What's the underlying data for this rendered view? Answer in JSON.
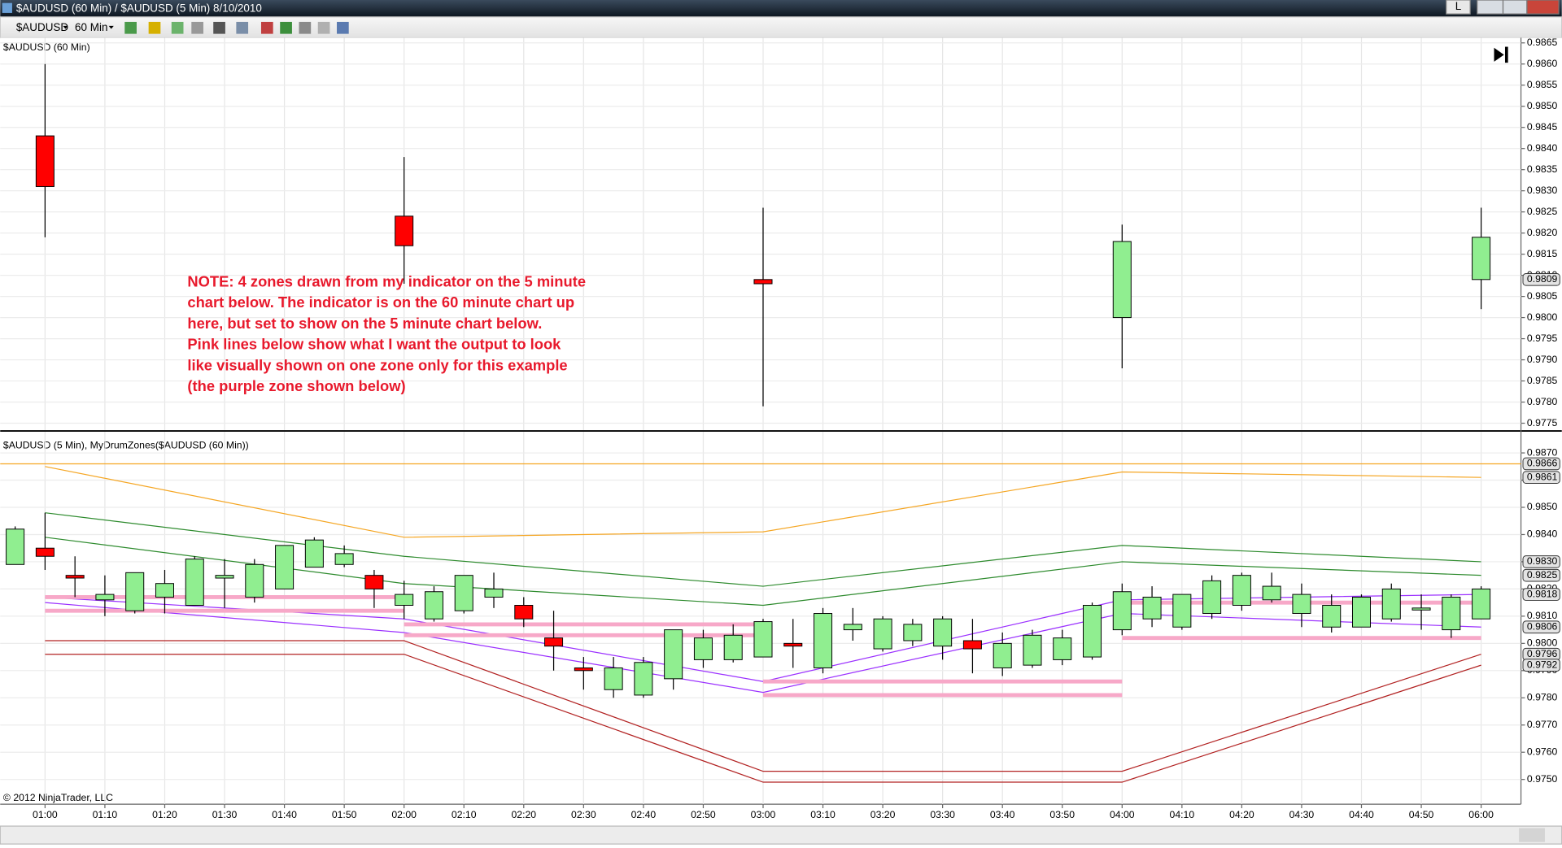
{
  "window": {
    "title": "$AUDUSD (60 Min) / $AUDUSD (5 Min)  8/10/2010",
    "link_button": "L",
    "toolbar": {
      "instrument": "$AUDUSD",
      "interval": "60 Min"
    },
    "copyright": "© 2012 NinjaTrader, LLC"
  },
  "chart_data": [
    {
      "type": "candlestick",
      "title": "$AUDUSD (60 Min)",
      "annotation": [
        "NOTE: 4 zones drawn from my indicator on the 5 minute",
        "chart below.  The indicator is on the 60 minute chart up",
        "here, but set to show on the 5 minute chart below.",
        "Pink lines below show what I want the output to look",
        "like visually shown on one zone only for this example",
        "(the purple zone shown below)"
      ],
      "categories": [
        "01:00",
        "02:00",
        "03:00",
        "04:00",
        "06:00"
      ],
      "open": [
        0.9843,
        0.9824,
        0.9809,
        0.98,
        0.9809
      ],
      "high": [
        0.986,
        0.9838,
        0.9826,
        0.9822,
        0.9826
      ],
      "low": [
        0.9819,
        0.9808,
        0.9779,
        0.9788,
        0.9802
      ],
      "close": [
        0.9831,
        0.9817,
        0.9808,
        0.9818,
        0.9819
      ],
      "up_color": "#90ee90",
      "down_color": "#ff0000",
      "ylim": [
        0.97734,
        0.98662
      ],
      "yticks": [
        0.9775,
        {
          "value": 0.978,
          "label": "0.9780"
        },
        0.9785,
        {
          "value": 0.979,
          "label": "0.9790"
        },
        0.9795,
        {
          "value": 0.98,
          "label": "0.9800"
        },
        0.9805,
        {
          "value": 0.981,
          "label": "0.9810"
        },
        0.9815,
        {
          "value": 0.982,
          "label": "0.9820"
        },
        0.9825,
        {
          "value": 0.983,
          "label": "0.9830"
        },
        0.9835,
        {
          "value": 0.984,
          "label": "0.9840"
        },
        0.9845,
        {
          "value": 0.985,
          "label": "0.9850"
        },
        0.9855,
        {
          "value": 0.986,
          "label": "0.9860"
        },
        0.9865
      ],
      "price_markers": [
        0.9809
      ],
      "grid": true
    },
    {
      "type": "candlestick",
      "title": "$AUDUSD (5 Min), MyDrumZones($AUDUSD (60 Min))",
      "categories": [
        null,
        "01:00",
        null,
        "01:10",
        null,
        "01:20",
        null,
        "01:30",
        null,
        "01:40",
        null,
        "01:50",
        null,
        "02:00",
        null,
        "02:10",
        null,
        "02:20",
        null,
        "02:30",
        null,
        "02:40",
        null,
        "02:50",
        null,
        "03:00",
        null,
        "03:10",
        null,
        "03:20",
        null,
        "03:30",
        null,
        "03:40",
        null,
        "03:50",
        null,
        "04:00",
        null,
        "04:10",
        null,
        "04:20",
        null,
        "04:30",
        null,
        "04:40",
        null,
        "04:50",
        null,
        "06:00"
      ],
      "open": [
        0.9829,
        0.9835,
        0.9825,
        0.9816,
        0.9812,
        0.9817,
        0.9814,
        0.9824,
        0.9817,
        0.982,
        0.9828,
        0.9829,
        0.9825,
        0.9814,
        0.9809,
        0.9812,
        0.9817,
        0.9814,
        0.9802,
        0.9791,
        0.9783,
        0.9781,
        0.9787,
        0.9794,
        0.9794,
        0.9795,
        0.98,
        0.9791,
        0.9805,
        0.9798,
        0.9801,
        0.9799,
        0.9801,
        0.9791,
        0.9792,
        0.9794,
        0.9795,
        0.9805,
        0.9809,
        0.9806,
        0.9811,
        0.9814,
        0.9816,
        0.9811,
        0.9806,
        0.9806,
        0.9809,
        0.9813,
        0.9805,
        0.9809
      ],
      "high": [
        0.9843,
        0.9848,
        0.9832,
        0.9825,
        0.9826,
        0.9827,
        0.9832,
        0.9831,
        0.9831,
        0.9836,
        0.9839,
        0.9836,
        0.9827,
        0.9823,
        0.9821,
        0.9825,
        0.9826,
        0.9817,
        0.9812,
        0.9795,
        0.9795,
        0.9795,
        0.9805,
        0.9805,
        0.9807,
        0.9809,
        0.9809,
        0.9813,
        0.9813,
        0.981,
        0.9809,
        0.981,
        0.9809,
        0.9804,
        0.9805,
        0.9805,
        0.9815,
        0.9822,
        0.9821,
        0.9818,
        0.9825,
        0.9826,
        0.9826,
        0.9822,
        0.9818,
        0.9818,
        0.9822,
        0.9818,
        0.9818,
        0.9821
      ],
      "low": [
        0.9829,
        0.9827,
        0.9817,
        0.981,
        0.9811,
        0.9811,
        0.9814,
        0.9813,
        0.9815,
        0.982,
        0.9828,
        0.9828,
        0.9813,
        0.9809,
        0.9808,
        0.9811,
        0.9813,
        0.9806,
        0.979,
        0.9783,
        0.978,
        0.978,
        0.9783,
        0.9791,
        0.9793,
        0.9795,
        0.9791,
        0.9789,
        0.9801,
        0.9797,
        0.9799,
        0.9794,
        0.9789,
        0.9788,
        0.9791,
        0.9792,
        0.9794,
        0.9803,
        0.9806,
        0.9805,
        0.9809,
        0.9812,
        0.9815,
        0.9806,
        0.9804,
        0.9806,
        0.9808,
        0.9805,
        0.9802,
        0.9809
      ],
      "close": [
        0.9842,
        0.9832,
        0.9824,
        0.9818,
        0.9826,
        0.9822,
        0.9831,
        0.9825,
        0.9829,
        0.9836,
        0.9838,
        0.9833,
        0.982,
        0.9818,
        0.9819,
        0.9825,
        0.982,
        0.9809,
        0.9799,
        0.979,
        0.9791,
        0.9793,
        0.9805,
        0.9802,
        0.9803,
        0.9808,
        0.9799,
        0.9811,
        0.9807,
        0.9809,
        0.9807,
        0.9809,
        0.9798,
        0.98,
        0.9803,
        0.9802,
        0.9814,
        0.9819,
        0.9817,
        0.9818,
        0.9823,
        0.9825,
        0.9821,
        0.9818,
        0.9814,
        0.9817,
        0.982,
        0.9813,
        0.9817,
        0.982
      ],
      "up_color": "#90ee90",
      "down_color": "#ff0000",
      "ylim": [
        0.97409,
        0.98777
      ],
      "yticks": [
        {
          "value": 0.975,
          "label": "0.9750"
        },
        {
          "value": 0.976,
          "label": "0.9760"
        },
        {
          "value": 0.977,
          "label": "0.9770"
        },
        {
          "value": 0.978,
          "label": "0.9780"
        },
        {
          "value": 0.979,
          "label": "0.9790"
        },
        {
          "value": 0.98,
          "label": "0.9800"
        },
        {
          "value": 0.981,
          "label": "0.9810"
        },
        {
          "value": 0.982,
          "label": "0.9820"
        },
        {
          "value": 0.983,
          "label": "0.9830"
        },
        {
          "value": 0.984,
          "label": "0.9840"
        },
        {
          "value": 0.985,
          "label": "0.9850"
        },
        {
          "value": 0.986,
          "label": "0.9860"
        },
        {
          "value": 0.987,
          "label": "0.9870"
        }
      ],
      "hlines": [
        {
          "value": 0.9866,
          "color": "#f5a623"
        }
      ],
      "lines": {
        "x": [
          "01:00",
          "02:00",
          "03:00",
          "04:00",
          "06:00"
        ],
        "series": [
          {
            "color": "#f5a623",
            "values": [
              0.9865,
              0.9839,
              0.9841,
              0.9863,
              0.9861
            ]
          },
          {
            "color": "#2e8b2e",
            "values": [
              0.9848,
              0.9832,
              0.9821,
              0.9836,
              0.983
            ]
          },
          {
            "color": "#2e8b2e",
            "values": [
              0.9839,
              0.9822,
              0.9814,
              0.983,
              0.9825
            ]
          },
          {
            "color": "#9b30ff",
            "values": [
              0.9817,
              0.9809,
              0.9786,
              0.9816,
              0.9818
            ]
          },
          {
            "color": "#9b30ff",
            "values": [
              0.9815,
              0.9804,
              0.9782,
              0.9811,
              0.9806
            ]
          },
          {
            "color": "#b22222",
            "values": [
              0.9801,
              0.9801,
              0.9753,
              0.9753,
              0.9796
            ]
          },
          {
            "color": "#b22222",
            "values": [
              0.9796,
              0.9796,
              0.9749,
              0.9749,
              0.9792
            ]
          }
        ]
      },
      "zones": [
        {
          "from": "01:00",
          "to": "02:00",
          "values": [
            0.9817,
            0.9812
          ]
        },
        {
          "from": "02:00",
          "to": "03:00",
          "values": [
            0.9807,
            0.9803
          ]
        },
        {
          "from": "03:00",
          "to": "04:00",
          "values": [
            0.9786,
            0.9781
          ]
        },
        {
          "from": "04:00",
          "to": "06:00",
          "values": [
            0.9815,
            0.9802
          ]
        }
      ],
      "zone_color": "#f7a8c8",
      "price_markers": [
        0.9866,
        0.9861,
        {
          "value": 0.983,
          "label": "0.9830"
        },
        0.9825,
        0.9818,
        0.9806,
        0.9796,
        0.9792
      ],
      "grid": true
    }
  ]
}
